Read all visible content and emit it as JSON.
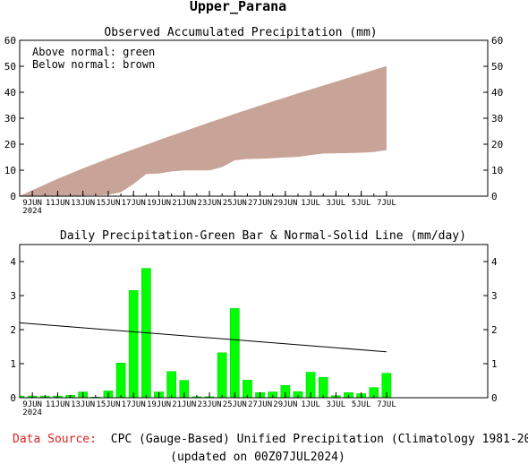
{
  "page_title": "Upper_Parana",
  "source_label": "Data Source:",
  "source_text": "CPC (Gauge-Based) Unified Precipitation (Climatology 1981-2010)",
  "updated_text": "(updated on 00Z07JUL2024)",
  "colors": {
    "below_fill": "#c8a397",
    "above_fill": "#00ff00",
    "bar_fill": "#00ff00",
    "bar_stroke": "#00cc00",
    "source_label": "#e02020",
    "axis": "#000000"
  },
  "chart_data": [
    {
      "type": "area",
      "title": "Observed Accumulated Precipitation (mm)",
      "legend": [
        "Above normal: green",
        "Below normal: brown"
      ],
      "legend_position": "top-left",
      "ylim": [
        0,
        60
      ],
      "yticks": [
        0,
        10,
        20,
        30,
        40,
        50,
        60
      ],
      "xlim": [
        0,
        37
      ],
      "xticks": [
        {
          "x": 1,
          "label": "9JUN",
          "sub": "2024"
        },
        {
          "x": 3,
          "label": "11JUN"
        },
        {
          "x": 5,
          "label": "13JUN"
        },
        {
          "x": 7,
          "label": "15JUN"
        },
        {
          "x": 9,
          "label": "17JUN"
        },
        {
          "x": 11,
          "label": "19JUN"
        },
        {
          "x": 13,
          "label": "21JUN"
        },
        {
          "x": 15,
          "label": "23JUN"
        },
        {
          "x": 17,
          "label": "25JUN"
        },
        {
          "x": 19,
          "label": "27JUN"
        },
        {
          "x": 21,
          "label": "29JUN"
        },
        {
          "x": 23,
          "label": "1JUL"
        },
        {
          "x": 25,
          "label": "3JUL"
        },
        {
          "x": 27,
          "label": "5JUL"
        },
        {
          "x": 29,
          "label": "7JUL"
        }
      ],
      "series": [
        {
          "name": "normal",
          "x": [
            0,
            1,
            2,
            3,
            4,
            5,
            6,
            7,
            8,
            9,
            10,
            11,
            12,
            13,
            14,
            15,
            16,
            17,
            18,
            19,
            20,
            21,
            22,
            23,
            24,
            25,
            26,
            27,
            28,
            29
          ],
          "values": [
            0,
            2.2,
            4.4,
            6.6,
            8.6,
            10.6,
            12.5,
            14.4,
            16.2,
            18.0,
            19.7,
            21.5,
            23.2,
            24.9,
            26.6,
            28.3,
            29.9,
            31.6,
            33.2,
            34.8,
            36.4,
            37.9,
            39.5,
            41.0,
            42.5,
            44.0,
            45.5,
            47.0,
            48.5,
            50.0
          ]
        },
        {
          "name": "observed",
          "x": [
            0,
            1,
            2,
            3,
            4,
            5,
            6,
            7,
            8,
            9,
            10,
            11,
            12,
            13,
            14,
            15,
            16,
            17,
            18,
            19,
            20,
            21,
            22,
            23,
            24,
            25,
            26,
            27,
            28,
            29
          ],
          "values": [
            0,
            0.05,
            0.1,
            0.15,
            0.2,
            0.35,
            0.4,
            0.6,
            1.6,
            4.8,
            8.6,
            8.8,
            9.6,
            10.0,
            10.0,
            10.0,
            11.3,
            13.9,
            14.4,
            14.5,
            14.7,
            15.0,
            15.2,
            15.9,
            16.5,
            16.6,
            16.7,
            16.8,
            17.1,
            17.8
          ]
        }
      ]
    },
    {
      "type": "bar",
      "title": "Daily Precipitation-Green Bar & Normal-Solid Line (mm/day)",
      "ylim": [
        0,
        4.5
      ],
      "yticks": [
        0,
        1,
        2,
        3,
        4
      ],
      "xlim": [
        0,
        37
      ],
      "xticks": [
        {
          "x": 1,
          "label": "9JUN",
          "sub": "2024"
        },
        {
          "x": 3,
          "label": "11JUN"
        },
        {
          "x": 5,
          "label": "13JUN"
        },
        {
          "x": 7,
          "label": "15JUN"
        },
        {
          "x": 9,
          "label": "17JUN"
        },
        {
          "x": 11,
          "label": "19JUN"
        },
        {
          "x": 13,
          "label": "21JUN"
        },
        {
          "x": 15,
          "label": "23JUN"
        },
        {
          "x": 17,
          "label": "25JUN"
        },
        {
          "x": 19,
          "label": "27JUN"
        },
        {
          "x": 21,
          "label": "29JUN"
        },
        {
          "x": 23,
          "label": "1JUL"
        },
        {
          "x": 25,
          "label": "3JUL"
        },
        {
          "x": 27,
          "label": "5JUL"
        },
        {
          "x": 29,
          "label": "7JUL"
        }
      ],
      "bars": {
        "x": [
          0,
          1,
          2,
          3,
          4,
          5,
          6,
          7,
          8,
          9,
          10,
          11,
          12,
          13,
          14,
          15,
          16,
          17,
          18,
          19,
          20,
          21,
          22,
          23,
          24,
          25,
          26,
          27,
          28,
          29
        ],
        "values": [
          0.05,
          0.05,
          0.05,
          0.05,
          0.07,
          0.17,
          0.02,
          0.2,
          1.02,
          3.15,
          3.8,
          0.17,
          0.77,
          0.51,
          0.03,
          0.03,
          1.32,
          2.62,
          0.52,
          0.15,
          0.17,
          0.36,
          0.18,
          0.75,
          0.6,
          0.06,
          0.15,
          0.12,
          0.3,
          0.72
        ]
      },
      "normal_line": {
        "x": [
          0,
          29
        ],
        "values": [
          2.2,
          1.35
        ]
      }
    }
  ]
}
